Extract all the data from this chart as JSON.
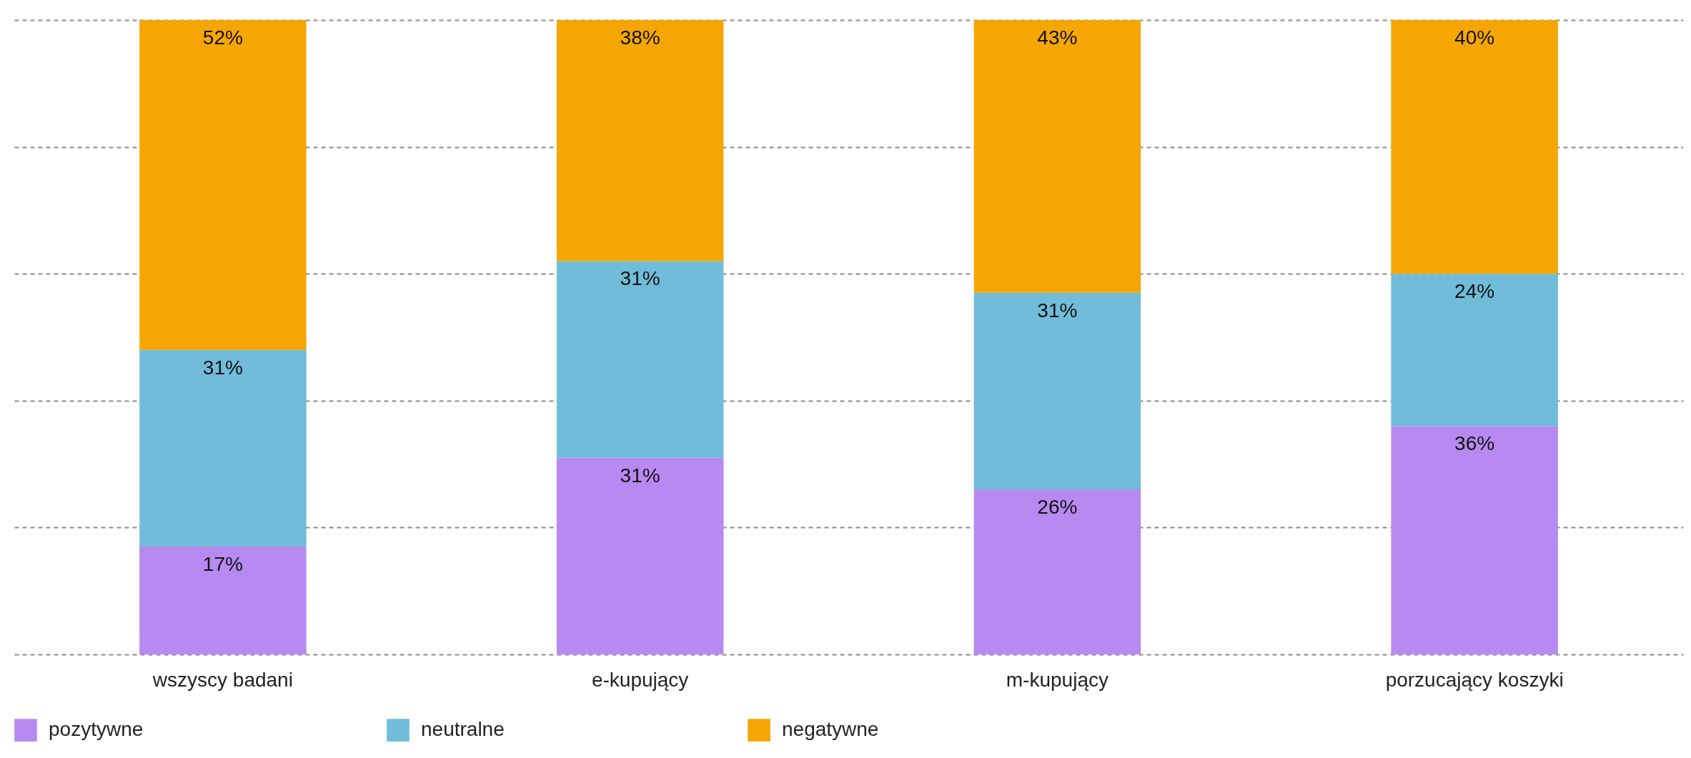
{
  "chart_data": {
    "type": "bar",
    "stacked": true,
    "categories": [
      "wszyscy badani",
      "e-kupujący",
      "m-kupujący",
      "porzucający koszyki"
    ],
    "series": [
      {
        "name": "pozytywne",
        "color": "#b889f0",
        "values": [
          17,
          31,
          26,
          36
        ],
        "value_labels": [
          "17%",
          "31%",
          "26%",
          "36%"
        ]
      },
      {
        "name": "neutralne",
        "color": "#70bcd9",
        "values": [
          31,
          31,
          31,
          24
        ],
        "value_labels": [
          "31%",
          "31%",
          "31%",
          "24%"
        ]
      },
      {
        "name": "negatywne",
        "color": "#f5a602",
        "values": [
          52,
          38,
          43,
          40
        ],
        "value_labels": [
          "52%",
          "38%",
          "43%",
          "40%"
        ]
      }
    ],
    "ylim": [
      0,
      100
    ],
    "yticks": [
      {
        "value": 0,
        "label": null
      },
      {
        "value": 20,
        "label": null
      },
      {
        "value": 40,
        "label": null
      },
      {
        "value": 60,
        "label": null
      },
      {
        "value": 80,
        "label": null
      },
      {
        "value": 100,
        "label": null
      }
    ],
    "grid": "y",
    "legend": "bottom",
    "tick_labels": "x"
  }
}
